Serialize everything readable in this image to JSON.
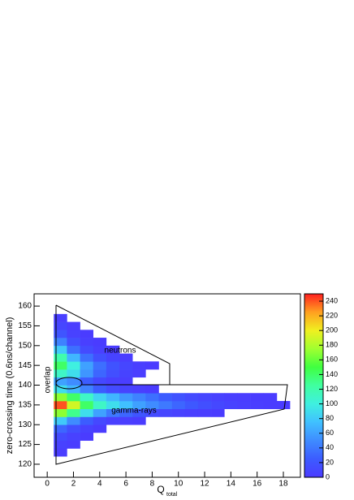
{
  "chart_data": {
    "type": "heatmap",
    "xlabel": "Q",
    "xlabel_sub": "total",
    "ylabel": "zero-crossing time (0.6ns/channel)",
    "annotations": [
      "neutrons",
      "gamma-rays",
      "overlap"
    ],
    "xlim": [
      -1,
      19.3
    ],
    "ylim": [
      116.7,
      163.1
    ],
    "zlim": [
      0,
      250
    ],
    "xticks": [
      0,
      2,
      4,
      6,
      8,
      10,
      12,
      14,
      16,
      18
    ],
    "yticks": [
      120,
      125,
      130,
      135,
      140,
      145,
      150,
      155,
      160
    ],
    "zticks": [
      0,
      20,
      40,
      60,
      80,
      100,
      120,
      140,
      160,
      180,
      200,
      220,
      240
    ],
    "colors": [
      "#4b3bff",
      "#3c5cff",
      "#3f8cff",
      "#40c0ff",
      "#3ff0e0",
      "#40ffa0",
      "#40ff40",
      "#a0ff30",
      "#f0f020",
      "#ffa020",
      "#ff2020"
    ],
    "xbins": [
      0.5,
      1.5,
      2.5,
      3.5,
      4.5,
      5.5,
      6.5,
      7.5,
      8.5,
      9.5,
      10.5,
      11.5,
      12.5,
      13.5,
      14.5,
      15.5,
      16.5,
      17.5,
      18.5
    ],
    "ybins": [
      118,
      120,
      122,
      124,
      126,
      128,
      130,
      132,
      134,
      136,
      138,
      140,
      142,
      144,
      146,
      148,
      150,
      152,
      154,
      156,
      158,
      160
    ],
    "z": [
      [
        0,
        0,
        0,
        0,
        0,
        0,
        0,
        0,
        0,
        0,
        0,
        0,
        0,
        0,
        0,
        0,
        0,
        0
      ],
      [
        0,
        0,
        0,
        0,
        0,
        0,
        0,
        0,
        0,
        0,
        0,
        0,
        0,
        0,
        0,
        0,
        0,
        0
      ],
      [
        2,
        0,
        0,
        0,
        0,
        0,
        0,
        0,
        0,
        0,
        0,
        0,
        0,
        0,
        0,
        0,
        0,
        0
      ],
      [
        5,
        2,
        0,
        0,
        0,
        0,
        0,
        0,
        0,
        0,
        0,
        0,
        0,
        0,
        0,
        0,
        0,
        0
      ],
      [
        12,
        5,
        1,
        0,
        0,
        0,
        0,
        0,
        0,
        0,
        0,
        0,
        0,
        0,
        0,
        0,
        0,
        0
      ],
      [
        30,
        15,
        5,
        1,
        0,
        0,
        0,
        0,
        0,
        0,
        0,
        0,
        0,
        0,
        0,
        0,
        0,
        0
      ],
      [
        80,
        50,
        25,
        10,
        4,
        2,
        1,
        0,
        0,
        0,
        0,
        0,
        0,
        0,
        0,
        0,
        0,
        0
      ],
      [
        170,
        130,
        90,
        60,
        40,
        30,
        20,
        12,
        8,
        5,
        3,
        2,
        1,
        0,
        0,
        0,
        0,
        0
      ],
      [
        240,
        190,
        140,
        110,
        90,
        75,
        60,
        50,
        40,
        30,
        22,
        15,
        10,
        6,
        4,
        2,
        1,
        1
      ],
      [
        170,
        140,
        110,
        85,
        70,
        55,
        45,
        35,
        25,
        18,
        12,
        8,
        5,
        3,
        2,
        1,
        1,
        0
      ],
      [
        90,
        70,
        45,
        25,
        12,
        6,
        3,
        1,
        0,
        0,
        0,
        0,
        0,
        0,
        0,
        0,
        0,
        0
      ],
      [
        60,
        50,
        25,
        10,
        4,
        2,
        0,
        0,
        0,
        0,
        0,
        0,
        0,
        0,
        0,
        0,
        0,
        0
      ],
      [
        110,
        90,
        55,
        30,
        15,
        6,
        2,
        0,
        0,
        0,
        0,
        0,
        0,
        0,
        0,
        0,
        0,
        0
      ],
      [
        140,
        100,
        60,
        35,
        18,
        8,
        3,
        1,
        0,
        0,
        0,
        0,
        0,
        0,
        0,
        0,
        0,
        0
      ],
      [
        120,
        70,
        35,
        15,
        6,
        2,
        0,
        0,
        0,
        0,
        0,
        0,
        0,
        0,
        0,
        0,
        0,
        0
      ],
      [
        80,
        35,
        12,
        4,
        1,
        0,
        0,
        0,
        0,
        0,
        0,
        0,
        0,
        0,
        0,
        0,
        0,
        0
      ],
      [
        45,
        15,
        4,
        1,
        0,
        0,
        0,
        0,
        0,
        0,
        0,
        0,
        0,
        0,
        0,
        0,
        0,
        0
      ],
      [
        20,
        5,
        1,
        0,
        0,
        0,
        0,
        0,
        0,
        0,
        0,
        0,
        0,
        0,
        0,
        0,
        0,
        0
      ],
      [
        8,
        2,
        0,
        0,
        0,
        0,
        0,
        0,
        0,
        0,
        0,
        0,
        0,
        0,
        0,
        0,
        0,
        0
      ],
      [
        3,
        0,
        0,
        0,
        0,
        0,
        0,
        0,
        0,
        0,
        0,
        0,
        0,
        0,
        0,
        0,
        0,
        0
      ],
      [
        0,
        0,
        0,
        0,
        0,
        0,
        0,
        0,
        0,
        0,
        0,
        0,
        0,
        0,
        0,
        0,
        0,
        0
      ]
    ]
  }
}
